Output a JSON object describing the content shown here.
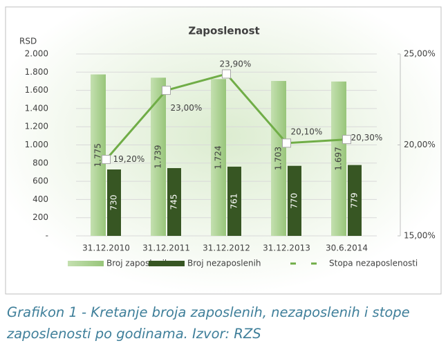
{
  "chart_data": {
    "type": "bar",
    "title": "Zaposlenost",
    "ylabel": "RSD",
    "categories": [
      "31.12.2010",
      "31.12.2011",
      "31.12.2012",
      "31.12.2013",
      "30.6.2014"
    ],
    "series": [
      {
        "name": "Broj zaposlenih",
        "type": "bar",
        "color": "#a9d08e",
        "values": [
          1775,
          1739,
          1724,
          1703,
          1697
        ],
        "value_labels": [
          "1.775",
          "1.739",
          "1.724",
          "1.703",
          "1.697"
        ]
      },
      {
        "name": "Broj nezaposlenih",
        "type": "bar",
        "color": "#375623",
        "values": [
          730,
          745,
          761,
          770,
          779
        ]
      },
      {
        "name": "Stopa nezaposlenosti",
        "type": "line",
        "axis": "y2",
        "color": "#70ad47",
        "values": [
          19.2,
          23.0,
          23.9,
          20.1,
          20.3
        ],
        "value_labels": [
          "19,20%",
          "23,00%",
          "23,90%",
          "20,10%",
          "20,30%"
        ]
      }
    ],
    "ylim": [
      0,
      2000
    ],
    "yticks": [
      {
        "value": 0,
        "label": "-"
      },
      200,
      400,
      600,
      800,
      {
        "value": 1000,
        "label": "1.000"
      },
      {
        "value": 1200,
        "label": "1.200"
      },
      {
        "value": 1400,
        "label": "1.400"
      },
      {
        "value": 1600,
        "label": "1.600"
      },
      {
        "value": 1800,
        "label": "1.800"
      },
      {
        "value": 2000,
        "label": "2.000"
      }
    ],
    "y2lim": [
      15,
      25
    ],
    "y2ticks": [
      {
        "value": 15,
        "label": "15,00%"
      },
      {
        "value": 20,
        "label": "20,00%"
      },
      {
        "value": 25,
        "label": "25,00%"
      }
    ],
    "grid": true,
    "legend": "bottom"
  },
  "caption": "Grafikon 1 - Kretanje broja zaposlenih, nezaposlenih i stope zaposlenosti po godinama. Izvor: RZS"
}
